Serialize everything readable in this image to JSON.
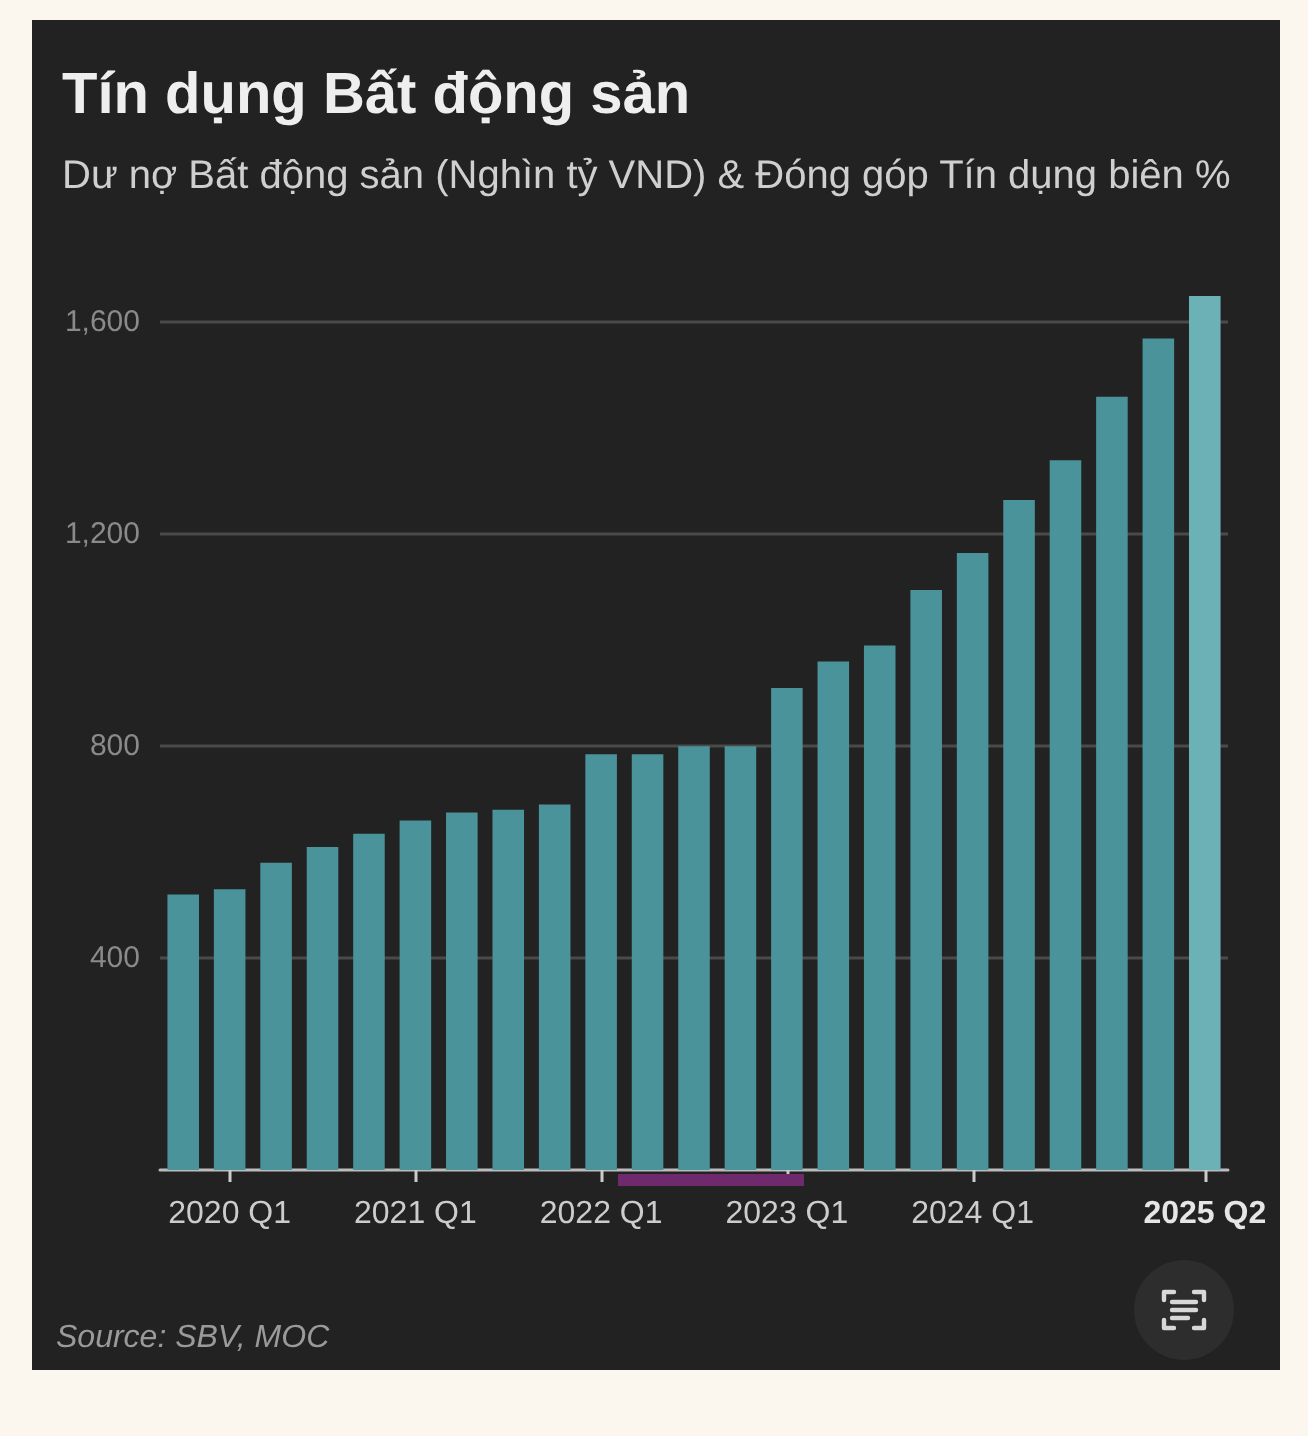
{
  "chart_data": {
    "type": "bar",
    "title": "Tín dụng Bất động sản",
    "subtitle": "Dư nợ Bất động sản (Nghìn tỷ VND) & Đóng góp Tín dụng biên %",
    "categories": [
      null,
      "2020 Q1",
      null,
      null,
      null,
      "2021 Q1",
      null,
      null,
      null,
      "2022 Q1",
      null,
      null,
      null,
      "2023 Q1",
      null,
      null,
      null,
      "2024 Q1",
      null,
      null,
      null,
      null,
      "2025 Q2"
    ],
    "values": [
      520,
      530,
      580,
      610,
      635,
      660,
      675,
      680,
      690,
      785,
      785,
      800,
      800,
      910,
      960,
      990,
      1095,
      1165,
      1265,
      1340,
      1460,
      1570,
      1650
    ],
    "colors": [
      "#4a939a",
      "#4a939a",
      "#4a939a",
      "#4a939a",
      "#4a939a",
      "#4a939a",
      "#4a939a",
      "#4a939a",
      "#4a939a",
      "#4a939a",
      "#4a939a",
      "#4a939a",
      "#4a939a",
      "#4a939a",
      "#4a939a",
      "#4a939a",
      "#4a939a",
      "#4a939a",
      "#4a939a",
      "#4a939a",
      "#4a939a",
      "#4a939a",
      "#6cb1b6"
    ],
    "ylim": [
      0,
      1650
    ],
    "yticks": [
      400,
      800,
      {
        "value": 1200,
        "label": "1,200"
      },
      {
        "value": 1600,
        "label": "1,600"
      }
    ],
    "grid": "y",
    "annotations": [
      "Source: SBV, MOC"
    ]
  }
}
